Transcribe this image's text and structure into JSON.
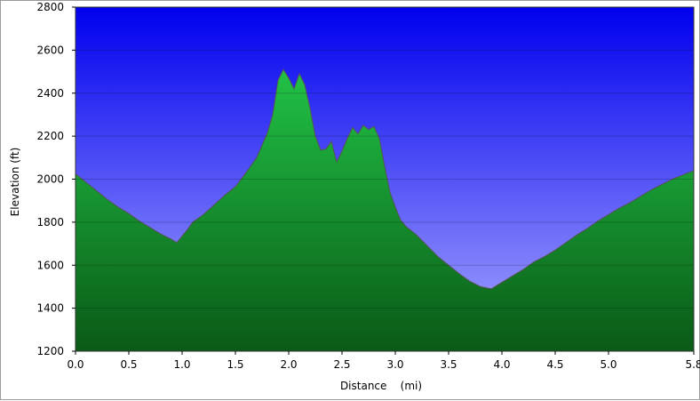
{
  "chart_data": {
    "type": "area",
    "title": "",
    "xlabel": "Distance    (mi)",
    "ylabel": "Elevation (ft)",
    "xlim": [
      0,
      5.8
    ],
    "ylim": [
      1200,
      2800
    ],
    "x_ticks": [
      0.0,
      0.5,
      1.0,
      1.5,
      2.0,
      2.5,
      3.0,
      3.5,
      4.0,
      4.5,
      5.0,
      5.8
    ],
    "x_tick_labels": [
      "0.0",
      "0.5",
      "1.0",
      "1.5",
      "2.0",
      "2.5",
      "3.0",
      "3.5",
      "4.0",
      "4.5",
      "5.0",
      "5.8"
    ],
    "y_ticks": [
      1200,
      1400,
      1600,
      1800,
      2000,
      2200,
      2400,
      2600,
      2800
    ],
    "y_tick_labels": [
      "1200",
      "1400",
      "1600",
      "1800",
      "2000",
      "2200",
      "2400",
      "2600",
      "2800"
    ],
    "grid": "horizontal",
    "legend": "none",
    "colors": {
      "sky_top": "#0000ee",
      "sky_bottom": "#a9a9ff",
      "fill_top": "#21c246",
      "fill_bottom": "#0a5a16",
      "outline": "#555555"
    },
    "series": [
      {
        "x": [
          0.0,
          0.1,
          0.2,
          0.3,
          0.4,
          0.5,
          0.6,
          0.7,
          0.8,
          0.9,
          0.95,
          1.0,
          1.05,
          1.1,
          1.2,
          1.3,
          1.4,
          1.5,
          1.6,
          1.7,
          1.8,
          1.85,
          1.9,
          1.95,
          2.0,
          2.05,
          2.1,
          2.15,
          2.2,
          2.25,
          2.3,
          2.35,
          2.4,
          2.45,
          2.5,
          2.55,
          2.6,
          2.65,
          2.7,
          2.75,
          2.8,
          2.85,
          2.9,
          2.95,
          3.0,
          3.05,
          3.1,
          3.2,
          3.3,
          3.4,
          3.5,
          3.6,
          3.7,
          3.8,
          3.9,
          4.0,
          4.1,
          4.2,
          4.3,
          4.4,
          4.5,
          4.6,
          4.7,
          4.8,
          4.9,
          5.0,
          5.1,
          5.2,
          5.3,
          5.4,
          5.5,
          5.6,
          5.7,
          5.8
        ],
        "y": [
          2025,
          1985,
          1945,
          1905,
          1870,
          1840,
          1805,
          1775,
          1745,
          1720,
          1705,
          1735,
          1765,
          1800,
          1835,
          1880,
          1925,
          1965,
          2030,
          2100,
          2215,
          2300,
          2460,
          2510,
          2470,
          2420,
          2490,
          2440,
          2330,
          2200,
          2135,
          2140,
          2175,
          2080,
          2130,
          2190,
          2240,
          2210,
          2250,
          2230,
          2245,
          2190,
          2060,
          1940,
          1870,
          1810,
          1780,
          1740,
          1690,
          1640,
          1600,
          1560,
          1525,
          1500,
          1490,
          1520,
          1550,
          1580,
          1615,
          1640,
          1670,
          1705,
          1740,
          1770,
          1805,
          1835,
          1865,
          1890,
          1920,
          1950,
          1975,
          2000,
          2020,
          2040
        ]
      }
    ]
  }
}
